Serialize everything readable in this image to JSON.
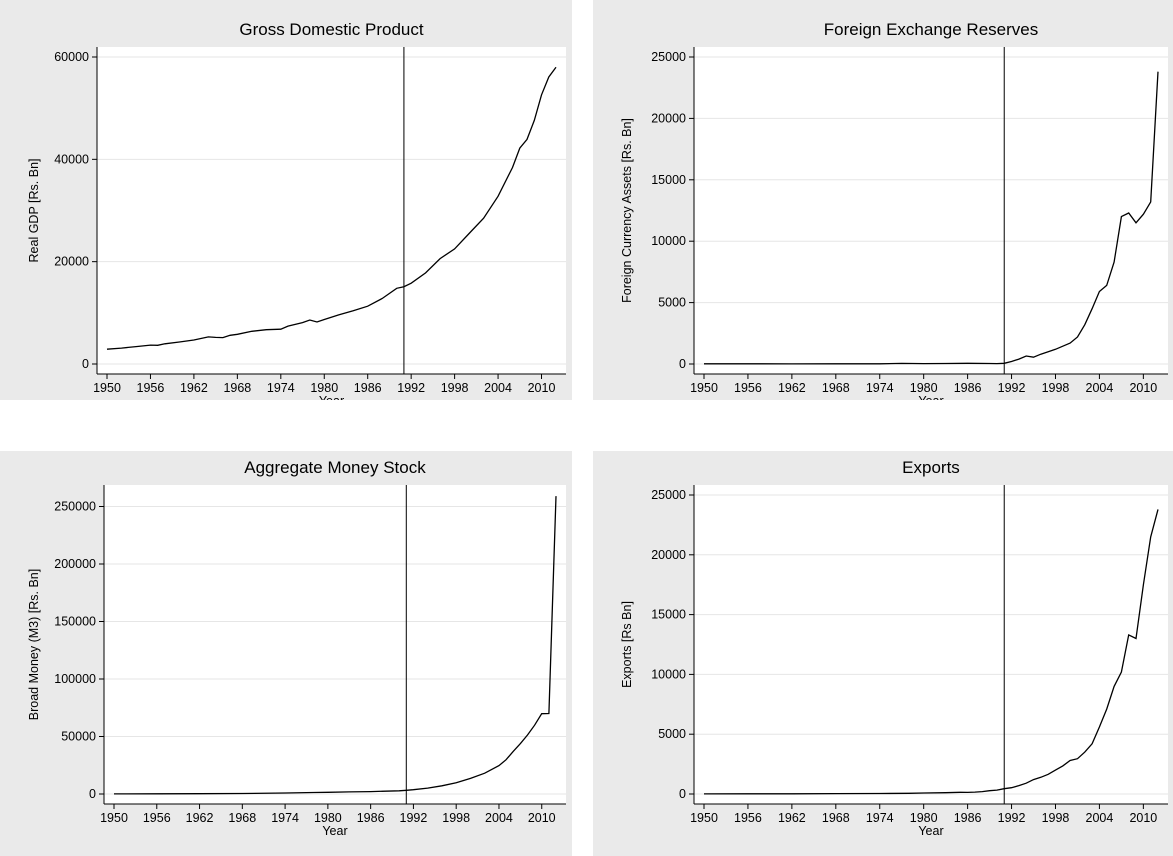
{
  "chart_data": [
    {
      "type": "line",
      "title": "Gross Domestic Product",
      "xlabel": "Year",
      "ylabel": "Real GDP [Rs. Bn]",
      "xlim": [
        1950,
        2012
      ],
      "ylim": [
        0,
        60000
      ],
      "yticks": [
        0,
        20000,
        40000,
        60000
      ],
      "xticks": [
        1950,
        1956,
        1962,
        1968,
        1974,
        1980,
        1986,
        1992,
        1998,
        2004,
        2010
      ],
      "vline_x": 1991,
      "grid": true,
      "series": [
        {
          "x": [
            1950,
            1952,
            1954,
            1956,
            1957,
            1958,
            1960,
            1962,
            1964,
            1965,
            1966,
            1967,
            1968,
            1970,
            1972,
            1974,
            1975,
            1977,
            1978,
            1979,
            1980,
            1982,
            1984,
            1986,
            1988,
            1990,
            1991,
            1992,
            1994,
            1996,
            1998,
            2000,
            2002,
            2004,
            2006,
            2007,
            2008,
            2009,
            2010,
            2011,
            2012
          ],
          "y": [
            2900,
            3100,
            3400,
            3700,
            3650,
            3950,
            4300,
            4700,
            5300,
            5200,
            5150,
            5600,
            5800,
            6400,
            6700,
            6800,
            7400,
            8100,
            8600,
            8200,
            8700,
            9600,
            10400,
            11300,
            12800,
            14800,
            15100,
            15800,
            17800,
            20600,
            22500,
            25500,
            28500,
            32800,
            38400,
            42200,
            43900,
            47600,
            52600,
            56100,
            58000
          ]
        }
      ]
    },
    {
      "type": "line",
      "title": "Foreign Exchange Reserves",
      "xlabel": "Year",
      "ylabel": "Foreign Currency Assets [Rs. Bn]",
      "xlim": [
        1950,
        2012
      ],
      "ylim": [
        0,
        25000
      ],
      "yticks": [
        0,
        5000,
        10000,
        15000,
        20000,
        25000
      ],
      "xticks": [
        1950,
        1956,
        1962,
        1968,
        1974,
        1980,
        1986,
        1992,
        1998,
        2004,
        2010
      ],
      "vline_x": 1991,
      "grid": true,
      "series": [
        {
          "x": [
            1950,
            1956,
            1962,
            1968,
            1974,
            1977,
            1980,
            1983,
            1986,
            1989,
            1990,
            1991,
            1992,
            1993,
            1994,
            1995,
            1996,
            1997,
            1998,
            1999,
            2000,
            2001,
            2002,
            2003,
            2004,
            2005,
            2006,
            2007,
            2008,
            2009,
            2010,
            2011,
            2012
          ],
          "y": [
            20,
            15,
            10,
            15,
            20,
            50,
            30,
            40,
            60,
            40,
            30,
            60,
            200,
            400,
            650,
            550,
            800,
            1000,
            1200,
            1450,
            1700,
            2200,
            3200,
            4500,
            5900,
            6400,
            8300,
            12000,
            12300,
            11500,
            12200,
            13200,
            23800
          ]
        }
      ]
    },
    {
      "type": "line",
      "title": "Aggregate Money Stock",
      "xlabel": "Year",
      "ylabel": "Broad Money (M3) [Rs. Bn]",
      "xlim": [
        1950,
        2012
      ],
      "ylim": [
        0,
        260000
      ],
      "yticks": [
        0,
        50000,
        100000,
        150000,
        200000,
        250000
      ],
      "xticks": [
        1950,
        1956,
        1962,
        1968,
        1974,
        1980,
        1986,
        1992,
        1998,
        2004,
        2010
      ],
      "vline_x": 1991,
      "grid": true,
      "series": [
        {
          "x": [
            1950,
            1956,
            1962,
            1968,
            1974,
            1978,
            1980,
            1983,
            1986,
            1988,
            1990,
            1991,
            1992,
            1994,
            1996,
            1998,
            2000,
            2002,
            2004,
            2005,
            2006,
            2007,
            2008,
            2009,
            2010,
            2011,
            2012
          ],
          "y": [
            100,
            150,
            250,
            450,
            900,
            1300,
            1500,
            1800,
            2100,
            2400,
            2800,
            3200,
            3700,
            5100,
            7100,
            9800,
            13600,
            18100,
            24700,
            29800,
            37000,
            43800,
            51300,
            59800,
            69800,
            70000,
            259000
          ]
        }
      ]
    },
    {
      "type": "line",
      "title": "Exports",
      "xlabel": "Year",
      "ylabel": "Exports [Rs Bn]",
      "xlim": [
        1950,
        2012
      ],
      "ylim": [
        0,
        25000
      ],
      "yticks": [
        0,
        5000,
        10000,
        15000,
        20000,
        25000
      ],
      "xticks": [
        1950,
        1956,
        1962,
        1968,
        1974,
        1980,
        1986,
        1992,
        1998,
        2004,
        2010
      ],
      "vline_x": 1991,
      "grid": true,
      "series": [
        {
          "x": [
            1950,
            1956,
            1962,
            1968,
            1974,
            1978,
            1980,
            1983,
            1985,
            1986,
            1987,
            1988,
            1989,
            1990,
            1991,
            1992,
            1993,
            1994,
            1995,
            1996,
            1997,
            1998,
            1999,
            2000,
            2001,
            2002,
            2003,
            2004,
            2005,
            2006,
            2007,
            2008,
            2009,
            2010,
            2011,
            2012
          ],
          "y": [
            10,
            15,
            20,
            30,
            40,
            60,
            80,
            110,
            140,
            130,
            160,
            200,
            280,
            330,
            440,
            530,
            700,
            900,
            1200,
            1400,
            1650,
            2000,
            2350,
            2800,
            2950,
            3500,
            4200,
            5600,
            7100,
            9000,
            10200,
            13300,
            13000,
            17500,
            21500,
            23800
          ]
        }
      ]
    }
  ]
}
